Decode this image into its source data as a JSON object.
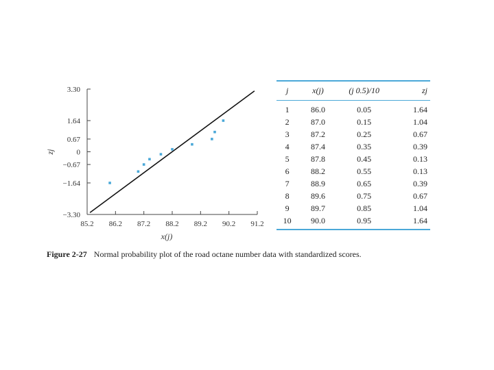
{
  "chart_data": {
    "type": "scatter",
    "xlabel": "x(j)",
    "ylabel": "zj",
    "xlim": [
      85.2,
      91.2
    ],
    "ylim": [
      -3.3,
      3.3
    ],
    "x_ticks": [
      "85.2",
      "86.2",
      "87.2",
      "88.2",
      "89.2",
      "90.2",
      "91.2"
    ],
    "y_ticks": [
      "3.30",
      "1.64",
      "0.67",
      "0",
      "−0.67",
      "−1.64",
      "−3.30"
    ],
    "y_tick_values": [
      3.3,
      1.64,
      0.67,
      0,
      -0.67,
      -1.64,
      -3.3
    ],
    "grid": false,
    "point_color": "#4aa8d8",
    "line_color": "#111111",
    "points": [
      {
        "x": 86.0,
        "y": -1.64
      },
      {
        "x": 87.0,
        "y": -1.04
      },
      {
        "x": 87.2,
        "y": -0.67
      },
      {
        "x": 87.4,
        "y": -0.39
      },
      {
        "x": 87.8,
        "y": -0.13
      },
      {
        "x": 88.2,
        "y": 0.13
      },
      {
        "x": 88.9,
        "y": 0.39
      },
      {
        "x": 89.6,
        "y": 0.67
      },
      {
        "x": 89.7,
        "y": 1.04
      },
      {
        "x": 90.0,
        "y": 1.64
      }
    ],
    "fit_line": {
      "x": [
        85.3,
        91.1
      ],
      "y": [
        -3.2,
        3.2
      ]
    }
  },
  "caption": {
    "figure": "Figure 2-27",
    "text": "Normal probability plot of the road octane number data with standardized scores."
  },
  "table": {
    "headers": [
      "j",
      "x(j)",
      "(j  0.5)/10",
      "zj"
    ],
    "rows": [
      [
        "1",
        "86.0",
        "0.05",
        "1.64"
      ],
      [
        "2",
        "87.0",
        "0.15",
        "1.04"
      ],
      [
        "3",
        "87.2",
        "0.25",
        "0.67"
      ],
      [
        "4",
        "87.4",
        "0.35",
        "0.39"
      ],
      [
        "5",
        "87.8",
        "0.45",
        "0.13"
      ],
      [
        "6",
        "88.2",
        "0.55",
        "0.13"
      ],
      [
        "7",
        "88.9",
        "0.65",
        "0.39"
      ],
      [
        "8",
        "89.6",
        "0.75",
        "0.67"
      ],
      [
        "9",
        "89.7",
        "0.85",
        "1.04"
      ],
      [
        "10",
        "90.0",
        "0.95",
        "1.64"
      ]
    ]
  }
}
